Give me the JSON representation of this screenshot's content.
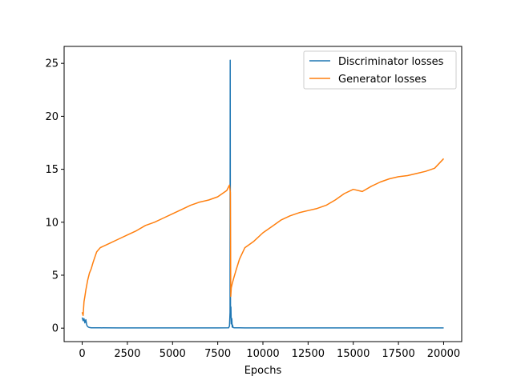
{
  "chart_data": {
    "type": "line",
    "title": "",
    "xlabel": "Epochs",
    "ylabel": "",
    "xlim": [
      -1000,
      21000
    ],
    "ylim": [
      -1.27,
      26.6
    ],
    "xticks": [
      0,
      2500,
      5000,
      7500,
      10000,
      12500,
      15000,
      17500,
      20000
    ],
    "xtick_labels": [
      "0",
      "2500",
      "5000",
      "7500",
      "10000",
      "12500",
      "15000",
      "17500",
      "20000"
    ],
    "yticks": [
      0,
      5,
      10,
      15,
      20,
      25
    ],
    "ytick_labels": [
      "0",
      "5",
      "10",
      "15",
      "20",
      "25"
    ],
    "grid": false,
    "legend_position": "upper right",
    "series": [
      {
        "name": "Discriminator losses",
        "color": "#1f77b4",
        "x": [
          0,
          50,
          100,
          150,
          200,
          250,
          300,
          350,
          400,
          500,
          600,
          800,
          1000,
          2000,
          4000,
          6000,
          7500,
          8100,
          8150,
          8180,
          8190,
          8200,
          8210,
          8230,
          8250,
          8280,
          8300,
          8320,
          8350,
          8400,
          8500,
          8700,
          9000,
          10000,
          12500,
          15000,
          17500,
          20000
        ],
        "y": [
          1.0,
          0.7,
          0.9,
          0.5,
          0.8,
          0.3,
          0.15,
          0.1,
          0.06,
          0.04,
          0.03,
          0.03,
          0.03,
          0.02,
          0.02,
          0.02,
          0.02,
          0.03,
          0.2,
          1.5,
          25.3,
          8.0,
          1.0,
          2.0,
          0.4,
          0.9,
          0.1,
          0.3,
          0.06,
          0.04,
          0.03,
          0.03,
          0.02,
          0.02,
          0.02,
          0.02,
          0.02,
          0.02
        ]
      },
      {
        "name": "Generator losses",
        "color": "#ff7f0e",
        "x": [
          0,
          50,
          100,
          150,
          200,
          300,
          400,
          500,
          600,
          700,
          800,
          900,
          1000,
          1500,
          2000,
          2500,
          3000,
          3500,
          4000,
          4500,
          5000,
          5500,
          6000,
          6500,
          7000,
          7500,
          8000,
          8150,
          8200,
          8220,
          8250,
          8300,
          8400,
          8500,
          8700,
          9000,
          9500,
          10000,
          10500,
          11000,
          11500,
          12000,
          12500,
          13000,
          13500,
          14000,
          14500,
          15000,
          15500,
          16000,
          16500,
          17000,
          17500,
          18000,
          18500,
          19000,
          19500,
          20000
        ],
        "y": [
          1.5,
          1.2,
          2.5,
          3.0,
          3.6,
          4.5,
          5.2,
          5.6,
          6.2,
          6.7,
          7.2,
          7.4,
          7.6,
          8.0,
          8.4,
          8.8,
          9.2,
          9.7,
          10.0,
          10.4,
          10.8,
          11.2,
          11.6,
          11.9,
          12.1,
          12.4,
          13.0,
          13.5,
          12.8,
          3.0,
          3.8,
          4.2,
          4.8,
          5.4,
          6.5,
          7.6,
          8.2,
          9.0,
          9.6,
          10.2,
          10.6,
          10.9,
          11.1,
          11.3,
          11.6,
          12.1,
          12.7,
          13.1,
          12.9,
          13.4,
          13.8,
          14.1,
          14.3,
          14.4,
          14.6,
          14.8,
          15.1,
          16.0
        ]
      }
    ]
  }
}
